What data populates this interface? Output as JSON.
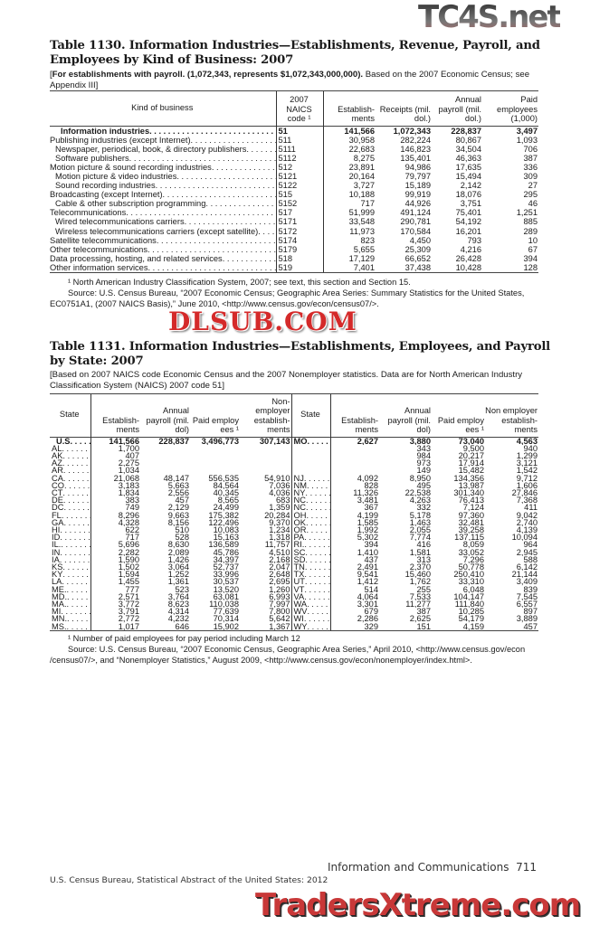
{
  "table1130": {
    "title": "Table 1130. Information Industries—Establishments, Revenue, Payroll, and Employees by Kind of Business: 2007",
    "headnote_bold": "For establishments with payroll. (1,072,343, represents $1,072,343,000,000).",
    "headnote": " Based on the 2007 Economic Census; see Appendix III]",
    "columns": [
      "Kind of business",
      "2007 NAICS code ¹",
      "Establish- ments",
      "Receipts (mil. dol.)",
      "Annual payroll (mil. dol.)",
      "Paid employees (1,000)"
    ],
    "rows": [
      {
        "kind": "Information industries",
        "code": "51",
        "est": "141,566",
        "rec": "1,072,343",
        "pay": "228,837",
        "emp": "3,497",
        "bold": true,
        "indent": 2
      },
      {
        "kind": "Publishing industries (except Internet)",
        "code": "511",
        "est": "30,958",
        "rec": "282,224",
        "pay": "80,867",
        "emp": "1,093",
        "indent": 0
      },
      {
        "kind": "Newspaper, periodical, book, & directory publishers",
        "code": "5111",
        "est": "22,683",
        "rec": "146,823",
        "pay": "34,504",
        "emp": "706",
        "indent": 1
      },
      {
        "kind": "Software publishers",
        "code": "5112",
        "est": "8,275",
        "rec": "135,401",
        "pay": "46,363",
        "emp": "387",
        "indent": 1
      },
      {
        "kind": "Motion picture & sound recording industries",
        "code": "512",
        "est": "23,891",
        "rec": "94,986",
        "pay": "17,635",
        "emp": "336",
        "indent": 0
      },
      {
        "kind": "Motion picture & video industries",
        "code": "5121",
        "est": "20,164",
        "rec": "79,797",
        "pay": "15,494",
        "emp": "309",
        "indent": 1
      },
      {
        "kind": "Sound recording industries",
        "code": "5122",
        "est": "3,727",
        "rec": "15,189",
        "pay": "2,142",
        "emp": "27",
        "indent": 1
      },
      {
        "kind": "Broadcasting (except Internet)",
        "code": "515",
        "est": "10,188",
        "rec": "99,919",
        "pay": "18,076",
        "emp": "295",
        "indent": 0
      },
      {
        "kind": "Cable & other subscription programming",
        "code": "5152",
        "est": "717",
        "rec": "44,926",
        "pay": "3,751",
        "emp": "46",
        "indent": 1
      },
      {
        "kind": "Telecommunications",
        "code": "517",
        "est": "51,999",
        "rec": "491,124",
        "pay": "75,401",
        "emp": "1,251",
        "indent": 0
      },
      {
        "kind": "Wired telecommunications carriers",
        "code": "5171",
        "est": "33,548",
        "rec": "290,781",
        "pay": "54,192",
        "emp": "885",
        "indent": 1
      },
      {
        "kind": "Wireless telecommunications carriers (except satellite)",
        "code": "5172",
        "est": "11,973",
        "rec": "170,584",
        "pay": "16,201",
        "emp": "289",
        "indent": 1
      },
      {
        "kind": "Satellite telecommunications",
        "code": "5174",
        "est": "823",
        "rec": "4,450",
        "pay": "793",
        "emp": "10",
        "indent": 0
      },
      {
        "kind": "Other telecommunications",
        "code": "5179",
        "est": "5,655",
        "rec": "25,309",
        "pay": "4,216",
        "emp": "67",
        "indent": 0
      },
      {
        "kind": "Data processing, hosting, and related services",
        "code": "518",
        "est": "17,129",
        "rec": "66,652",
        "pay": "26,428",
        "emp": "394",
        "indent": 0
      },
      {
        "kind": "Other information services",
        "code": "519",
        "est": "7,401",
        "rec": "37,438",
        "pay": "10,428",
        "emp": "128",
        "indent": 0
      }
    ],
    "footnote": "¹ North American Industry Classification System, 2007; see text, this section and Section 15.",
    "source": "Source: U.S. Census Bureau, “2007 Economic Census; Geographic Area Series: Summary Statistics for the United States, EC0751A1, (2007 NAICS Basis),” June 2010, <http://www.census.gov/econ/census07/>."
  },
  "table1131": {
    "title": "Table 1131. Information Industries—Establishments, Employees, and Payroll by State: 2007",
    "headnote": "[Based on 2007 NAICS code Economic Census and the 2007 Nonemployer statistics. Data are for North American Industry Classification System (NAICS) 2007 code 51]",
    "columns_left": [
      "State",
      "Establish- ments",
      "Annual payroll (mil. dol)",
      "Paid employ ees ¹",
      "Non- employer establish- ments"
    ],
    "columns_right": [
      "State",
      "Establish- ments",
      "Annual payroll (mil. dol)",
      "Paid employ ees ¹",
      "Non employer establish- ments"
    ],
    "rows": [
      [
        [
          "U.S",
          "141,566",
          "228,837",
          "3,496,773",
          "307,143"
        ],
        [
          "MO",
          "2,627",
          "3,880",
          "73,040",
          "4,563"
        ]
      ],
      [
        [
          "AL",
          "1,700",
          "",
          "",
          ""
        ],
        [
          "",
          "",
          "343",
          "9,500",
          "940"
        ]
      ],
      [
        [
          "AK",
          "407",
          "",
          "",
          ""
        ],
        [
          "",
          "",
          "984",
          "20,217",
          "1,299"
        ]
      ],
      [
        [
          "AZ",
          "2,275",
          "",
          "",
          ""
        ],
        [
          "",
          "",
          "973",
          "17,914",
          "3,121"
        ]
      ],
      [
        [
          "AR",
          "1,034",
          "",
          "",
          ""
        ],
        [
          "",
          "",
          "149",
          "15,482",
          "1,542"
        ]
      ],
      [
        [
          "CA",
          "21,068",
          "48,147",
          "556,535",
          "54,910"
        ],
        [
          "NJ",
          "4,092",
          "8,950",
          "134,356",
          "9,712"
        ]
      ],
      [
        [
          "CO",
          "3,183",
          "5,663",
          "84,564",
          "7,036"
        ],
        [
          "NM",
          "828",
          "495",
          "13,987",
          "1,606"
        ]
      ],
      [
        [
          "CT",
          "1,834",
          "2,556",
          "40,345",
          "4,036"
        ],
        [
          "NY",
          "11,326",
          "22,538",
          "301,340",
          "27,846"
        ]
      ],
      [
        [
          "DE",
          "383",
          "457",
          "8,565",
          "683"
        ],
        [
          "NC",
          "3,481",
          "4,263",
          "76,413",
          "7,368"
        ]
      ],
      [
        [
          "DC",
          "749",
          "2,129",
          "24,499",
          "1,359"
        ],
        [
          "NC",
          "367",
          "332",
          "7,124",
          "411"
        ]
      ],
      [
        [
          "FL",
          "8,296",
          "9,663",
          "175,382",
          "20,284"
        ],
        [
          "OH",
          "4,199",
          "5,178",
          "97,360",
          "9,042"
        ]
      ],
      [
        [
          "GA",
          "4,328",
          "8,156",
          "122,496",
          "9,370"
        ],
        [
          "OK",
          "1,585",
          "1,463",
          "32,481",
          "2,740"
        ]
      ],
      [
        [
          "HI",
          "622",
          "510",
          "10,083",
          "1,234"
        ],
        [
          "OR",
          "1,992",
          "2,055",
          "39,258",
          "4,139"
        ]
      ],
      [
        [
          "ID",
          "717",
          "528",
          "15,163",
          "1,318"
        ],
        [
          "PA",
          "5,302",
          "7,774",
          "137,115",
          "10,094"
        ]
      ],
      [
        [
          "IL.",
          "5,696",
          "8,630",
          "136,589",
          "11,757"
        ],
        [
          "RI.",
          "394",
          "416",
          "8,059",
          "964"
        ]
      ],
      [
        [
          "IN",
          "2,282",
          "2,089",
          "45,786",
          "4,510"
        ],
        [
          "SC",
          "1,410",
          "1,581",
          "33,052",
          "2,945"
        ]
      ],
      [
        [
          "IA",
          "1,590",
          "1,426",
          "34,397",
          "2,168"
        ],
        [
          "SD",
          "437",
          "313",
          "7,296",
          "588"
        ]
      ],
      [
        [
          "KS",
          "1,502",
          "3,064",
          "52,737",
          "2,047"
        ],
        [
          "TN",
          "2,491",
          "2,370",
          "50,778",
          "6,142"
        ]
      ],
      [
        [
          "KY",
          "1,594",
          "1,252",
          "33,996",
          "2,648"
        ],
        [
          "TX",
          "9,541",
          "15,460",
          "250,410",
          "21,144"
        ]
      ],
      [
        [
          "LA",
          "1,455",
          "1,361",
          "30,537",
          "2,695"
        ],
        [
          "UT",
          "1,412",
          "1,762",
          "33,310",
          "3,409"
        ]
      ],
      [
        [
          "ME.",
          "777",
          "523",
          "13,520",
          "1,260"
        ],
        [
          "VT",
          "514",
          "255",
          "6,048",
          "839"
        ]
      ],
      [
        [
          "MD.",
          "2,571",
          "3,764",
          "63,081",
          "6,993"
        ],
        [
          "VA",
          "4,064",
          "7,533",
          "104,147",
          "7,545"
        ]
      ],
      [
        [
          "MA.",
          "3,772",
          "8,623",
          "110,038",
          "7,997"
        ],
        [
          "WA",
          "3,301",
          "11,277",
          "111,840",
          "6,557"
        ]
      ],
      [
        [
          "MI",
          "3,791",
          "4,314",
          "77,639",
          "7,800"
        ],
        [
          "WV",
          "679",
          "387",
          "10,285",
          "897"
        ]
      ],
      [
        [
          "MN.",
          "2,772",
          "4,232",
          "70,314",
          "5,642"
        ],
        [
          "WI",
          "2,286",
          "2,625",
          "54,179",
          "3,889"
        ]
      ],
      [
        [
          "MS.",
          "1,017",
          "646",
          "15,902",
          "1,367"
        ],
        [
          "WY",
          "329",
          "151",
          "4,159",
          "457"
        ]
      ]
    ],
    "footnote": "¹ Number of paid employees for pay period including March 12",
    "source": "Source: U.S. Census Bureau, “2007 Economic Census, Geographic Area Series,” April 2010, <http://www.census.gov/econ /census07/>,  and “Nonemployer Statistics,” August 2009, <http://www.census.gov/econ/nonemployer/index.html>."
  },
  "footer": {
    "section": "Information and Communications",
    "page": "711",
    "publication": "U.S. Census Bureau, Statistical Abstract of the United States: 2012"
  },
  "watermarks": {
    "top": "TC4S.net",
    "middle": "DLSUB.COM",
    "bottom": "TradersXtreme.com"
  },
  "colors": {
    "watermark_red": "#d42a2a",
    "watermark_gray": "#4a4a4a"
  }
}
